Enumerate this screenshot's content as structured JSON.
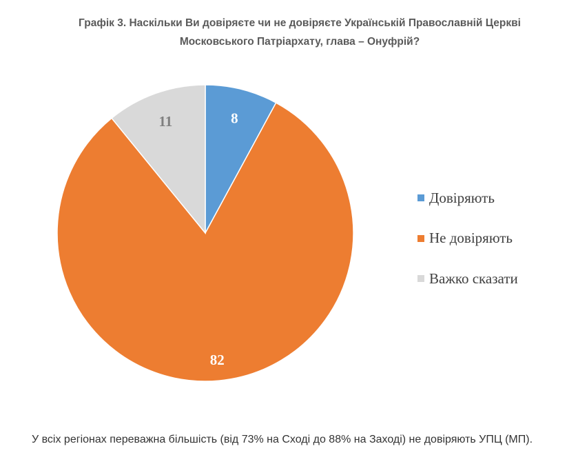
{
  "title": {
    "line1": "Графік 3. Наскільки Ви довіряєте чи не довіряєте Українській Православній Церкві",
    "line2": "Московського Патріархату, глава – Онуфрій?"
  },
  "chart_data": {
    "type": "pie",
    "title": "Графік 3. Наскільки Ви довіряєте чи не довіряєте Українській Православній Церкві Московського Патріархату, глава – Онуфрій?",
    "legend_position": "right",
    "slices": [
      {
        "label": "Довіряють",
        "value": 8,
        "display": "8",
        "color": "#5B9BD5",
        "label_color": "#ffffff"
      },
      {
        "label": "Не довіряють",
        "value": 82,
        "display": "82",
        "color": "#ED7D31",
        "label_color": "#ffffff"
      },
      {
        "label": "Важко сказати",
        "value": 11,
        "display": "11",
        "color": "#D9D9D9",
        "label_color": "#7f7f7f"
      }
    ]
  },
  "legend": {
    "items": [
      {
        "label": "Довіряють",
        "color": "#5B9BD5"
      },
      {
        "label": "Не довіряють",
        "color": "#ED7D31"
      },
      {
        "label": "Важко сказати",
        "color": "#D9D9D9"
      }
    ]
  },
  "caption": "У всіх регіонах переважна більшість (від 73% на Сході до 88% на Заході) не довіряють УПЦ (МП)."
}
